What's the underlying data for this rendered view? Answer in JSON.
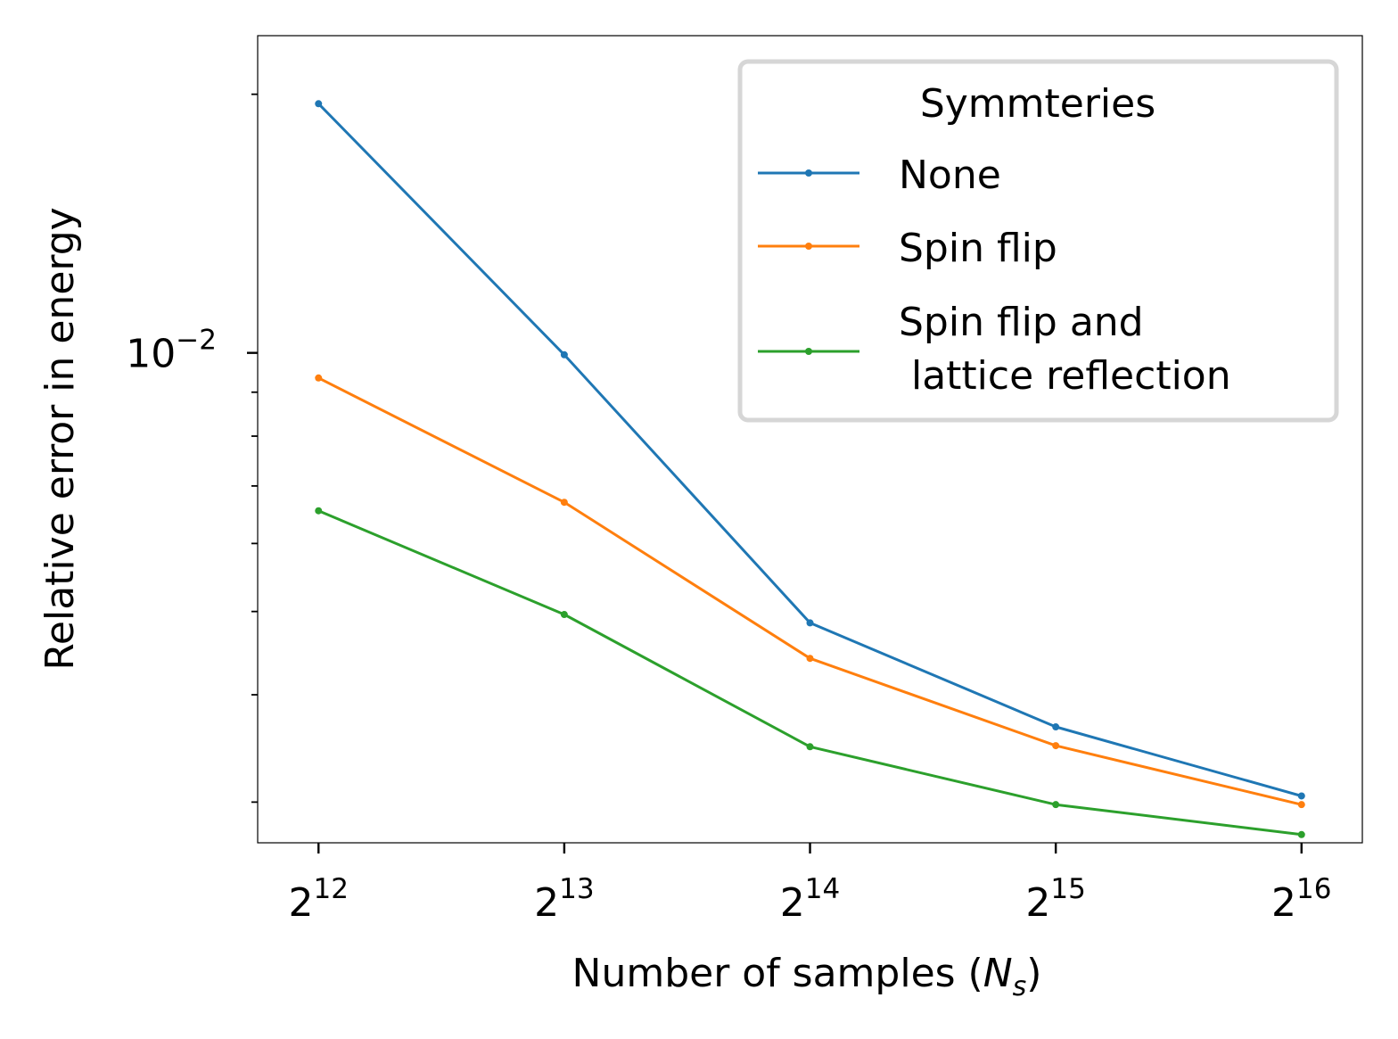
{
  "chart_data": {
    "type": "line",
    "xlabel": {
      "prefix": "Number of samples (",
      "var": "N",
      "sub": "s",
      "suffix": ")"
    },
    "ylabel": "Relative error in energy",
    "x_scale": "log2",
    "y_scale": "log10",
    "x": [
      4096,
      8192,
      16384,
      32768,
      65536
    ],
    "x_ticks": [
      {
        "value": 4096,
        "base": "2",
        "exp": "12"
      },
      {
        "value": 8192,
        "base": "2",
        "exp": "13"
      },
      {
        "value": 16384,
        "base": "2",
        "exp": "14"
      },
      {
        "value": 32768,
        "base": "2",
        "exp": "15"
      },
      {
        "value": 65536,
        "base": "2",
        "exp": "16"
      }
    ],
    "y_major_ticks": [
      {
        "value": 0.01,
        "base": "10",
        "exp": "−2"
      }
    ],
    "y_minor_ticks": [
      0.003,
      0.004,
      0.005,
      0.006,
      0.007,
      0.008,
      0.009,
      0.02
    ],
    "xlim": [
      3450,
      77800
    ],
    "ylim": [
      0.00269,
      0.0234
    ],
    "legend": {
      "title": "Symmteries",
      "location": "upper right"
    },
    "series": [
      {
        "name": "None",
        "color": "#1f77b4",
        "values": [
          0.0195,
          0.00995,
          0.00485,
          0.00367,
          0.00305
        ]
      },
      {
        "name": "Spin flip and\n lattice reflection",
        "name_lines": [
          "Spin flip and",
          " lattice reflection"
        ],
        "color": "#2ca02c",
        "values": [
          0.00655,
          0.00496,
          0.00348,
          0.00298,
          0.00275
        ]
      },
      {
        "name": "Spin flip",
        "color": "#ff7f0e",
        "values": [
          0.00935,
          0.0067,
          0.00441,
          0.00349,
          0.00298
        ]
      }
    ],
    "legend_order": [
      0,
      2,
      1
    ]
  }
}
